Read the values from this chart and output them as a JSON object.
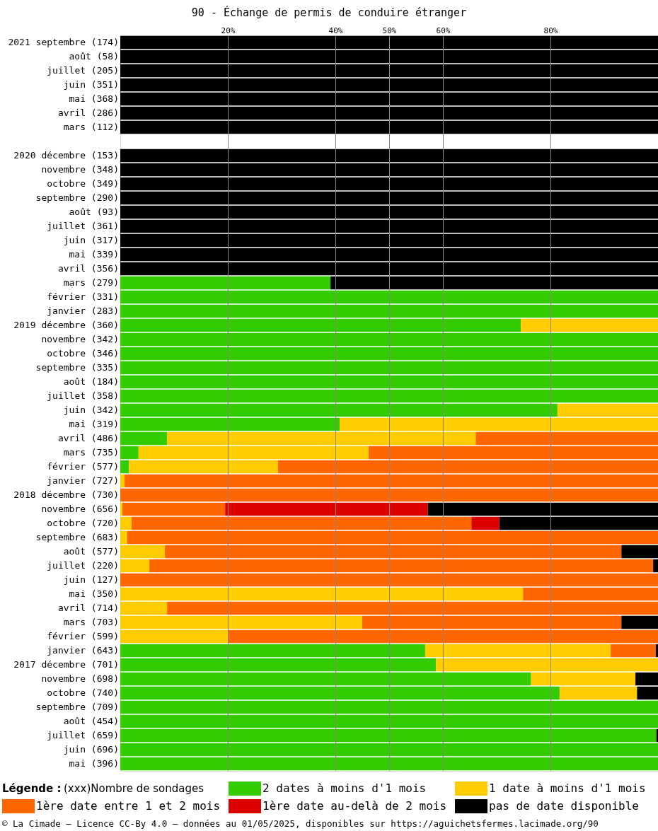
{
  "chart_data": {
    "type": "bar",
    "orientation": "horizontal",
    "stacked": true,
    "title": "90 - Échange de permis de conduire étranger",
    "legend_title": "Légende :",
    "legend": "bottom",
    "grid": "x",
    "xlim": [
      0,
      100
    ],
    "xticks": [
      {
        "value": 20,
        "label": "20%"
      },
      {
        "value": 40,
        "label": "40%"
      },
      {
        "value": 50,
        "label": "50%"
      },
      {
        "value": 60,
        "label": "60%"
      },
      {
        "value": 80,
        "label": "80%"
      }
    ],
    "categories": [
      "2021 septembre (174)",
      "août (58)",
      "juillet (205)",
      "juin (351)",
      "mai (368)",
      "avril (286)",
      "mars (112)",
      null,
      "2020 décembre (153)",
      "novembre (348)",
      "octobre (349)",
      "septembre (290)",
      "août (93)",
      "juillet (361)",
      "juin (317)",
      "mai (339)",
      "avril (356)",
      "mars (279)",
      "février (331)",
      "janvier (283)",
      "2019 décembre (360)",
      "novembre (342)",
      "octobre (346)",
      "septembre (335)",
      "août (184)",
      "juillet (358)",
      "juin (342)",
      "mai (319)",
      "avril (486)",
      "mars (735)",
      "février (577)",
      "janvier (727)",
      "2018 décembre (730)",
      "novembre (656)",
      "octobre (720)",
      "septembre (683)",
      "août (577)",
      "juillet (220)",
      "juin (127)",
      "mai (350)",
      "avril (714)",
      "mars (703)",
      "février (599)",
      "janvier (643)",
      "2017 décembre (701)",
      "novembre (698)",
      "octobre (740)",
      "septembre (709)",
      "août (454)",
      "juillet (659)",
      "juin (696)",
      "mai (396)"
    ],
    "series": [
      {
        "name": "2 dates à moins d'1 mois",
        "color": "#33cc00",
        "values": [
          0,
          0,
          0,
          0,
          0,
          0,
          0,
          null,
          0,
          0,
          0,
          0,
          0,
          0,
          0,
          0,
          0,
          39.1,
          100,
          100,
          74.5,
          100,
          100,
          100,
          100,
          100,
          81.3,
          40.8,
          8.7,
          3.4,
          1.6,
          0,
          0,
          0,
          0,
          0,
          0,
          0,
          0,
          0,
          0,
          0,
          0,
          56.7,
          58.7,
          76.4,
          81.7,
          100,
          100,
          99.7,
          100,
          100
        ]
      },
      {
        "name": "1 date à moins d'1 mois",
        "color": "#ffcc00",
        "values": [
          0,
          0,
          0,
          0,
          0,
          0,
          0,
          null,
          0,
          0,
          0,
          0,
          0,
          0,
          0,
          0,
          0,
          0,
          0,
          0,
          25.5,
          0,
          0,
          0,
          0,
          0,
          18.7,
          59.2,
          57.4,
          42.8,
          27.7,
          0.8,
          0,
          0.4,
          2.1,
          1.3,
          8.3,
          5.4,
          0,
          74.9,
          8.7,
          45.0,
          20.0,
          34.5,
          41.3,
          19.4,
          14.4,
          0,
          0,
          0,
          0,
          0
        ]
      },
      {
        "name": "1ère date entre 1 et 2 mois",
        "color": "#ff6600",
        "values": [
          0,
          0,
          0,
          0,
          0,
          0,
          0,
          null,
          0,
          0,
          0,
          0,
          0,
          0,
          0,
          0,
          0,
          0,
          0,
          0,
          0,
          0,
          0,
          0,
          0,
          0,
          0,
          0,
          33.9,
          53.8,
          70.7,
          99.2,
          100,
          19.1,
          63.2,
          98.7,
          84.9,
          93.7,
          100,
          25.1,
          91.3,
          48.2,
          80.0,
          8.4,
          0,
          0,
          0,
          0,
          0,
          0,
          0,
          0
        ]
      },
      {
        "name": "1ère date au-delà de 2 mois",
        "color": "#dd0000",
        "values": [
          0,
          0,
          0,
          0,
          0,
          0,
          0,
          null,
          0,
          0,
          0,
          0,
          0,
          0,
          0,
          0,
          0,
          0,
          0,
          0,
          0,
          0,
          0,
          0,
          0,
          0,
          0,
          0,
          0,
          0,
          0,
          0,
          0,
          37.7,
          5.2,
          0,
          0,
          0,
          0,
          0,
          0,
          0,
          0,
          0,
          0,
          0,
          0,
          0,
          0,
          0,
          0,
          0
        ]
      },
      {
        "name": "pas de date disponible",
        "color": "#000000",
        "values": [
          100,
          100,
          100,
          100,
          100,
          100,
          100,
          null,
          100,
          100,
          100,
          100,
          100,
          100,
          100,
          100,
          100,
          60.9,
          0,
          0,
          0,
          0,
          0,
          0,
          0,
          0,
          0,
          0,
          0,
          0,
          0,
          0,
          0,
          42.8,
          29.5,
          0,
          6.8,
          0.9,
          0,
          0,
          0,
          6.8,
          0,
          0.4,
          0,
          4.2,
          3.9,
          0,
          0,
          0.3,
          0,
          0
        ]
      }
    ],
    "annotations": [
      "(xxx)Nombre de sondages",
      "© La Cimade — Licence CC-By 4.0 — données au 01/05/2025, disponibles sur https://aguichetsfermes.lacimade.org/90"
    ]
  }
}
